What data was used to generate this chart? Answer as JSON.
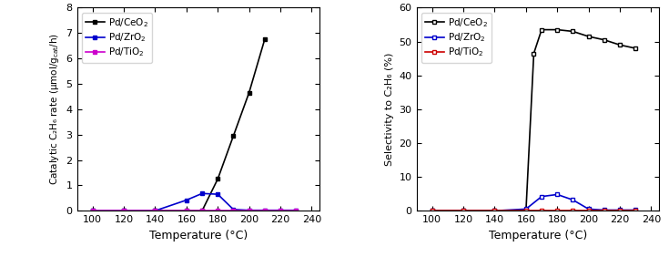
{
  "rate_CeO2_x": [
    100,
    120,
    140,
    160,
    170,
    180,
    190,
    200,
    210
  ],
  "rate_CeO2_y": [
    0.0,
    0.0,
    0.0,
    0.0,
    0.0,
    1.25,
    2.95,
    4.65,
    6.75
  ],
  "rate_ZrO2_x": [
    100,
    120,
    140,
    160,
    170,
    180,
    190,
    200,
    210,
    220,
    230
  ],
  "rate_ZrO2_y": [
    0.0,
    0.0,
    0.0,
    0.42,
    0.68,
    0.65,
    0.05,
    0.02,
    0.02,
    0.02,
    0.02
  ],
  "rate_TiO2_x": [
    100,
    120,
    140,
    160,
    170,
    180,
    190,
    200,
    210,
    220,
    230
  ],
  "rate_TiO2_y": [
    0.02,
    0.02,
    0.02,
    0.02,
    0.02,
    0.02,
    0.02,
    0.02,
    0.02,
    0.02,
    0.02
  ],
  "sel_CeO2_x": [
    100,
    120,
    140,
    160,
    165,
    170,
    180,
    190,
    200,
    210,
    220,
    230
  ],
  "sel_CeO2_y": [
    0.0,
    0.0,
    0.0,
    0.0,
    46.5,
    53.5,
    53.5,
    53.0,
    51.5,
    50.5,
    49.0,
    48.0
  ],
  "sel_ZrO2_x": [
    100,
    120,
    140,
    160,
    170,
    180,
    190,
    200,
    210,
    220,
    230
  ],
  "sel_ZrO2_y": [
    0.0,
    0.0,
    0.0,
    0.5,
    4.2,
    4.8,
    3.2,
    0.5,
    0.2,
    0.2,
    0.2
  ],
  "sel_TiO2_x": [
    100,
    120,
    140,
    160,
    170,
    180,
    190,
    200,
    210,
    220,
    230
  ],
  "sel_TiO2_y": [
    0.0,
    0.0,
    0.0,
    0.0,
    0.0,
    0.0,
    0.0,
    0.0,
    0.0,
    0.0,
    0.0
  ],
  "color_CeO2_left": "#000000",
  "color_ZrO2_left": "#0000cc",
  "color_TiO2_left": "#cc00cc",
  "color_CeO2_right": "#000000",
  "color_ZrO2_right": "#0000cc",
  "color_TiO2_right": "#cc0000",
  "xlabel": "Temperature (°C)",
  "ylabel_left": "Catalytic C₂H₆ rate (μmol/g$_\\mathregular{cat}$/h)",
  "ylabel_right": "Selectivity to C₂H₆ (%)",
  "legend_CeO2_left": "Pd/CeO$_\\mathregular{2}$",
  "legend_ZrO2_left": "Pd/ZrO$_\\mathregular{2}$",
  "legend_TiO2_left": "Pd/TiO$_\\mathregular{2}$",
  "legend_CeO2_right": "Pd/CeO$_\\mathregular{2}$",
  "legend_ZrO2_right": "Pd/ZrO$_\\mathregular{2}$",
  "legend_TiO2_right": "Pd/TiO$_\\mathregular{2}$",
  "xlim": [
    90,
    245
  ],
  "xticks": [
    100,
    120,
    140,
    160,
    180,
    200,
    220,
    240
  ],
  "ylim_left": [
    0,
    8
  ],
  "yticks_left": [
    0,
    1,
    2,
    3,
    4,
    5,
    6,
    7,
    8
  ],
  "ylim_right": [
    0,
    60
  ],
  "yticks_right": [
    0,
    10,
    20,
    30,
    40,
    50,
    60
  ]
}
